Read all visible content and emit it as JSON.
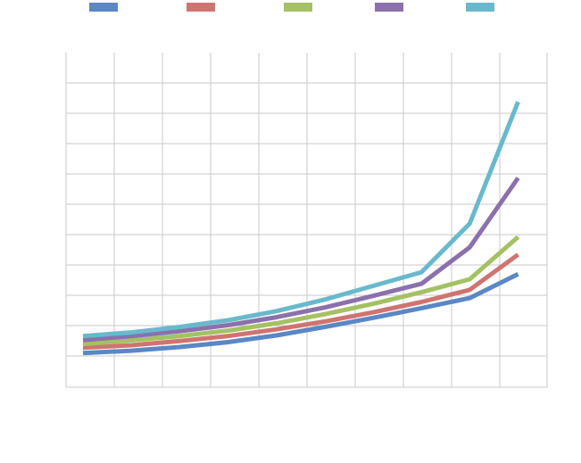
{
  "chart_data": {
    "type": "line",
    "title": "",
    "xlabel": "",
    "ylabel": "",
    "legend_position": "top",
    "grid": true,
    "x": [
      0,
      1,
      2,
      3,
      4,
      5,
      6,
      7,
      8,
      9
    ],
    "xlim": [
      -0.35,
      9.6
    ],
    "ylim": [
      -1,
      10
    ],
    "series": [
      {
        "name": "",
        "color": "#5B87C5",
        "x": [
          0,
          1,
          2,
          3,
          4,
          5,
          6,
          7,
          8,
          9
        ],
        "values": [
          0.12,
          0.2,
          0.32,
          0.48,
          0.7,
          0.98,
          1.28,
          1.6,
          1.93,
          2.72
        ]
      },
      {
        "name": "",
        "color": "#CF7470",
        "x": [
          0,
          1,
          2,
          3,
          4,
          5,
          6,
          7,
          8,
          9
        ],
        "values": [
          0.3,
          0.38,
          0.52,
          0.68,
          0.9,
          1.16,
          1.46,
          1.8,
          2.2,
          3.36
        ]
      },
      {
        "name": "",
        "color": "#A4C163",
        "x": [
          0,
          1,
          2,
          3,
          4,
          5,
          6,
          7,
          8,
          9
        ],
        "values": [
          0.42,
          0.54,
          0.68,
          0.86,
          1.1,
          1.4,
          1.74,
          2.12,
          2.55,
          3.94
        ]
      },
      {
        "name": "",
        "color": "#8B71AC",
        "x": [
          0,
          1,
          2,
          3,
          4,
          5,
          6,
          7,
          8,
          9
        ],
        "values": [
          0.55,
          0.68,
          0.84,
          1.04,
          1.3,
          1.62,
          2.0,
          2.4,
          3.6,
          5.88
        ]
      },
      {
        "name": "",
        "color": "#69B9CC",
        "x": [
          0,
          1,
          2,
          3,
          4,
          5,
          6,
          7,
          8,
          9
        ],
        "values": [
          0.68,
          0.8,
          0.98,
          1.2,
          1.5,
          1.88,
          2.33,
          2.78,
          4.38,
          8.38
        ]
      }
    ]
  }
}
